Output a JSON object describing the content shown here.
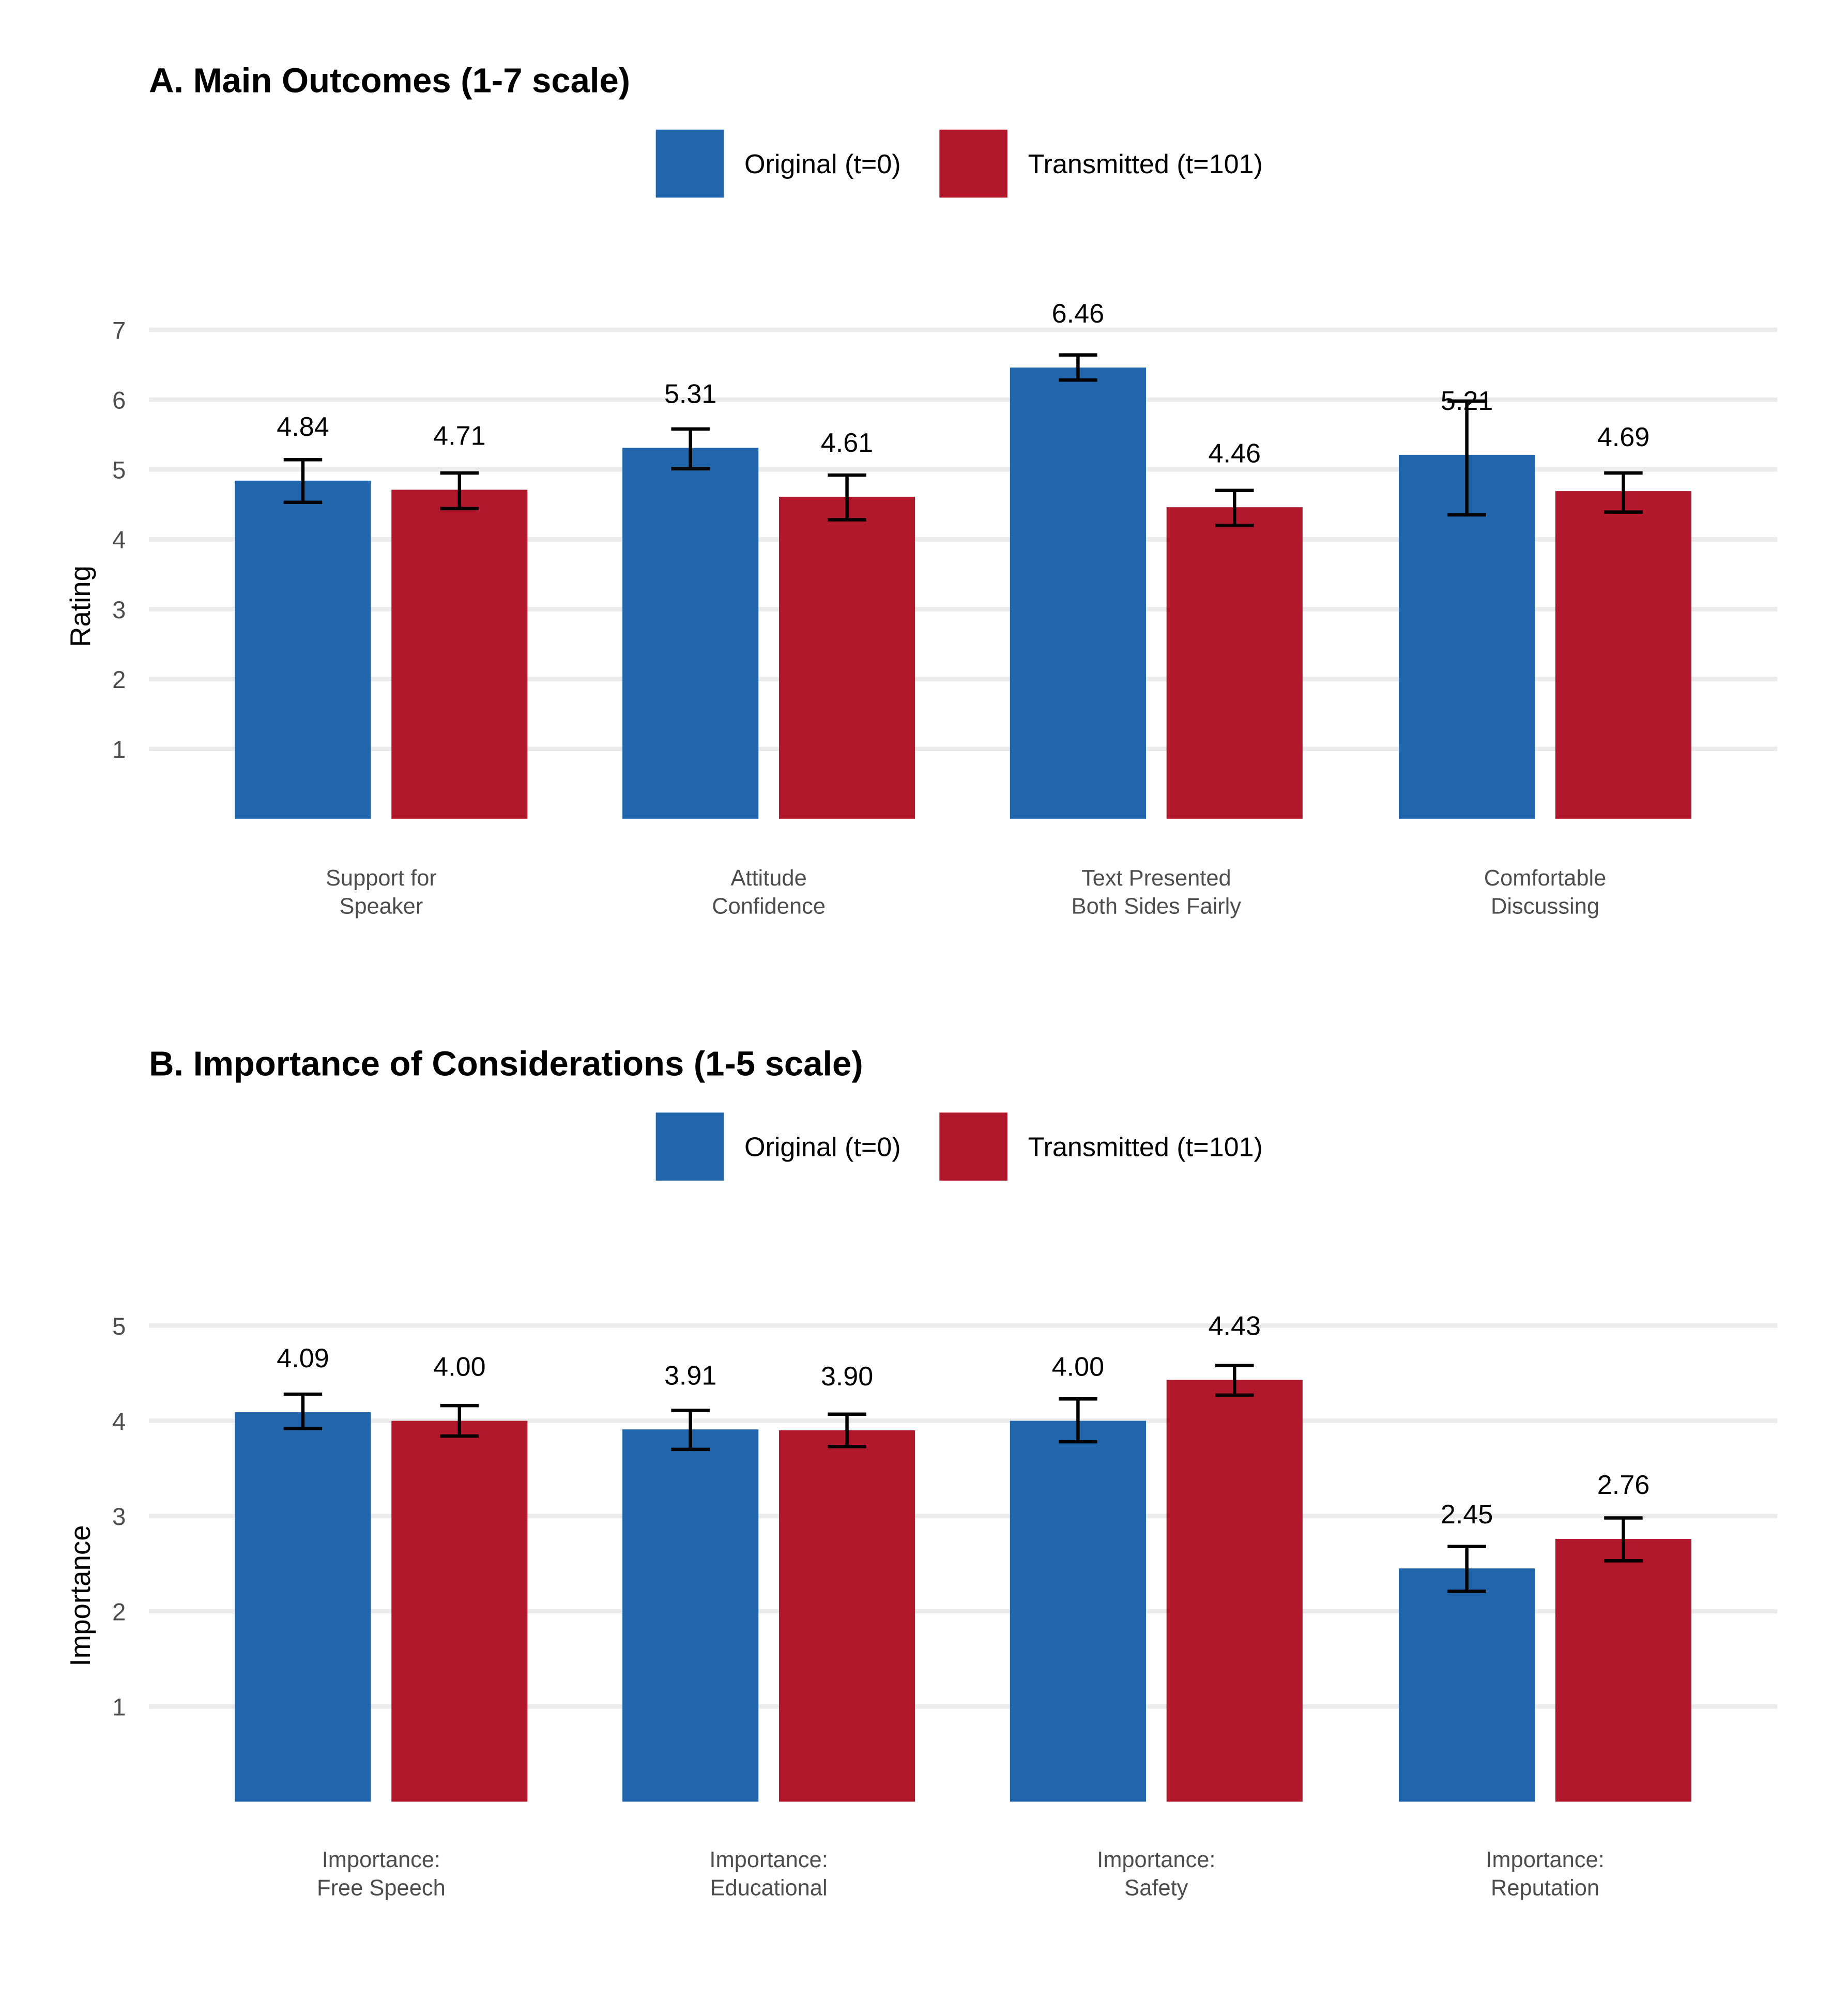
{
  "colors": {
    "original": "#2166ac",
    "transmitted": "#b2182b",
    "grid": "#ebebeb",
    "error_bar": "#000000"
  },
  "chart_data": [
    {
      "type": "bar",
      "title": "A. Main Outcomes (1-7 scale)",
      "ylabel": "Rating",
      "xlabel": "",
      "ylim": [
        0,
        7
      ],
      "yticks": [
        1,
        2,
        3,
        4,
        5,
        6,
        7
      ],
      "grid": "horizontal",
      "legend_position": "top",
      "categories": [
        [
          "Support for",
          "Speaker"
        ],
        [
          "Attitude",
          "Confidence"
        ],
        [
          "Text Presented",
          "Both Sides Fairly"
        ],
        [
          "Comfortable",
          "Discussing"
        ]
      ],
      "series": [
        {
          "name": "Original (t=0)",
          "values": [
            4.84,
            5.31,
            6.46,
            5.21
          ],
          "labels": [
            "4.84",
            "5.31",
            "6.46",
            "5.21"
          ],
          "error_low": [
            4.53,
            5.01,
            6.28,
            4.35
          ],
          "error_high": [
            5.14,
            5.58,
            6.64,
            5.98
          ]
        },
        {
          "name": "Transmitted (t=101)",
          "values": [
            4.71,
            4.61,
            4.46,
            4.69
          ],
          "labels": [
            "4.71",
            "4.61",
            "4.46",
            "4.69"
          ],
          "error_low": [
            4.44,
            4.28,
            4.2,
            4.39
          ],
          "error_high": [
            4.95,
            4.92,
            4.7,
            4.95
          ]
        }
      ]
    },
    {
      "type": "bar",
      "title": "B. Importance of Considerations (1-5 scale)",
      "ylabel": "Importance",
      "xlabel": "",
      "ylim": [
        0,
        5
      ],
      "yticks": [
        1,
        2,
        3,
        4,
        5
      ],
      "grid": "horizontal",
      "legend_position": "top",
      "categories": [
        [
          "Importance:",
          "Free Speech"
        ],
        [
          "Importance:",
          "Educational"
        ],
        [
          "Importance:",
          "Safety"
        ],
        [
          "Importance:",
          "Reputation"
        ]
      ],
      "series": [
        {
          "name": "Original (t=0)",
          "values": [
            4.09,
            3.91,
            4.0,
            2.45
          ],
          "labels": [
            "4.09",
            "3.91",
            "4.00",
            "2.45"
          ],
          "error_low": [
            3.92,
            3.7,
            3.78,
            2.21
          ],
          "error_high": [
            4.28,
            4.11,
            4.23,
            2.68
          ]
        },
        {
          "name": "Transmitted (t=101)",
          "values": [
            4.0,
            3.9,
            4.43,
            2.76
          ],
          "labels": [
            "4.00",
            "3.90",
            "4.43",
            "2.76"
          ],
          "error_low": [
            3.84,
            3.73,
            4.27,
            2.53
          ],
          "error_high": [
            4.16,
            4.07,
            4.58,
            2.98
          ]
        }
      ]
    }
  ]
}
